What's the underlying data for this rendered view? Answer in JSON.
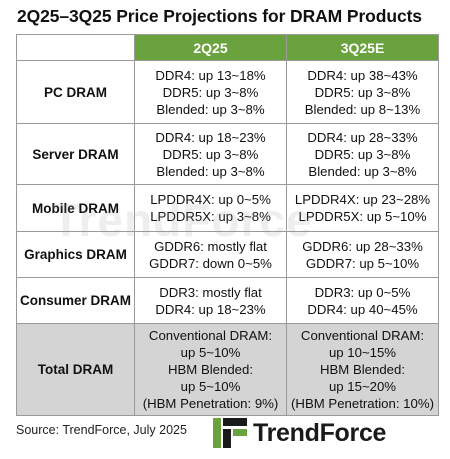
{
  "title": "2Q25–3Q25 Price Projections  for DRAM Products",
  "columns": [
    "",
    "2Q25",
    "3Q25E"
  ],
  "rows": [
    {
      "label": "PC DRAM",
      "q2": [
        "DDR4: up 13~18%",
        "DDR5: up 3~8%",
        "Blended: up 3~8%"
      ],
      "q3": [
        "DDR4: up 38~43%",
        "DDR5: up 3~8%",
        "Blended: up 8~13%"
      ]
    },
    {
      "label": "Server DRAM",
      "q2": [
        "DDR4: up 18~23%",
        "DDR5: up 3~8%",
        "Blended: up 3~8%"
      ],
      "q3": [
        "DDR4: up 28~33%",
        "DDR5: up 3~8%",
        "Blended: up 3~8%"
      ]
    },
    {
      "label": "Mobile DRAM",
      "q2": [
        "LPDDR4X: up 0~5%",
        "LPDDR5X: up 3~8%"
      ],
      "q3": [
        "LPDDR4X: up 23~28%",
        "LPDDR5X: up 5~10%"
      ]
    },
    {
      "label": "Graphics DRAM",
      "q2": [
        "GDDR6: mostly flat",
        "GDDR7: down 0~5%"
      ],
      "q3": [
        "GDDR6: up 28~33%",
        "GDDR7: up 5~10%"
      ]
    },
    {
      "label": "Consumer DRAM",
      "q2": [
        "DDR3: mostly flat",
        "DDR4: up 18~23%"
      ],
      "q3": [
        "DDR3: up 0~5%",
        "DDR4: up 40~45%"
      ]
    },
    {
      "label": "Total DRAM",
      "q2": [
        "Conventional DRAM:",
        "up 5~10%",
        "HBM Blended:",
        "up 5~10%",
        "(HBM Penetration: 9%)"
      ],
      "q3": [
        "Conventional DRAM:",
        "up 10~15%",
        "HBM Blended:",
        "up 15~20%",
        "(HBM Penetration: 10%)"
      ]
    }
  ],
  "watermark": "TrendForce",
  "source": "Source: TrendForce, July 2025",
  "logo": {
    "text": "TrendForce",
    "icon": "trendforce-logo-icon"
  },
  "colors": {
    "header_bg": "#6aa33e",
    "total_row_bg": "#d4d4d4",
    "border": "#9a9a9a"
  }
}
